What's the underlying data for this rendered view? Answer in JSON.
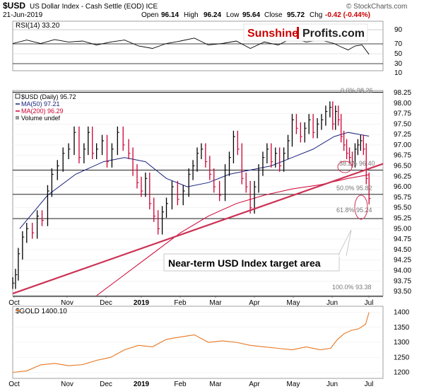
{
  "header": {
    "symbol": "$USD",
    "name": "US Dollar Index - Cash Settle (EOD) ICE",
    "date": "21-Jun-2019",
    "open_label": "Open",
    "open": "96.14",
    "high_label": "High",
    "high": "96.24",
    "low_label": "Low",
    "low": "95.64",
    "close_label": "Close",
    "close": "95.72",
    "chg_label": "Chg",
    "chg": "-0.42 (-0.44%)",
    "source": "© StockCharts.com"
  },
  "logo": {
    "part1": "Sunshine",
    "part2": "Profits.com"
  },
  "rsi": {
    "label": "RSI(14) 33.20",
    "ticks": [
      "90",
      "70",
      "50",
      "30",
      "10"
    ]
  },
  "price_legend": {
    "symbol": "$USD (Daily) 95.72",
    "ma50": "MA(50) 97.21",
    "ma200": "MA(200) 96.29",
    "volume": "Volume undef"
  },
  "fib_labels": {
    "f0": "0.0% 98.26",
    "f382": "38.2% 96.40",
    "f50": "50.0% 95.82",
    "f618": "61.8% 95.24",
    "f100": "100.0% 93.38"
  },
  "annotation": "Near-term USD Index target area",
  "gold": {
    "label": "$GOLD 1400.10",
    "ticks": [
      "1400",
      "1350",
      "1300",
      "1250",
      "1200"
    ]
  },
  "colors": {
    "price": "#000000",
    "up": "#000000",
    "down": "#cc0033",
    "ma50": "#1a237e",
    "ma200": "#cc0033",
    "trendline": "#cc3355",
    "gold_line": "#e87722",
    "logo_red": "#cc0000"
  },
  "chart_data": {
    "type": "line",
    "price": {
      "title": "$USD (Daily) 95.72",
      "x_labels": [
        "Oct",
        "Nov",
        "Dec",
        "2019",
        "Feb",
        "Mar",
        "Apr",
        "May",
        "Jun",
        "Jul"
      ],
      "y_ticks": [
        "98.25",
        "98.00",
        "97.75",
        "97.50",
        "97.25",
        "97.00",
        "96.75",
        "96.50",
        "96.25",
        "96.00",
        "95.75",
        "95.50",
        "95.25",
        "95.00",
        "94.75",
        "94.50",
        "94.25",
        "94.00",
        "93.75",
        "93.50"
      ],
      "ylim": [
        93.4,
        98.3
      ],
      "close_series": [
        {
          "x": 0,
          "y": 93.7
        },
        {
          "x": 4,
          "y": 93.9
        },
        {
          "x": 8,
          "y": 94.4
        },
        {
          "x": 14,
          "y": 94.8
        },
        {
          "x": 20,
          "y": 95.0
        },
        {
          "x": 28,
          "y": 94.9
        },
        {
          "x": 35,
          "y": 95.3
        },
        {
          "x": 42,
          "y": 95.2
        },
        {
          "x": 50,
          "y": 95.9
        },
        {
          "x": 56,
          "y": 96.3
        },
        {
          "x": 64,
          "y": 96.5
        },
        {
          "x": 72,
          "y": 96.8
        },
        {
          "x": 80,
          "y": 96.9
        },
        {
          "x": 88,
          "y": 97.3
        },
        {
          "x": 95,
          "y": 96.7
        },
        {
          "x": 102,
          "y": 96.9
        },
        {
          "x": 108,
          "y": 97.3
        },
        {
          "x": 114,
          "y": 96.8
        },
        {
          "x": 120,
          "y": 96.9
        },
        {
          "x": 128,
          "y": 97.1
        },
        {
          "x": 135,
          "y": 96.6
        },
        {
          "x": 142,
          "y": 96.9
        },
        {
          "x": 150,
          "y": 97.3
        },
        {
          "x": 158,
          "y": 97.0
        },
        {
          "x": 166,
          "y": 96.8
        },
        {
          "x": 172,
          "y": 96.4
        },
        {
          "x": 178,
          "y": 96.1
        },
        {
          "x": 184,
          "y": 95.9
        },
        {
          "x": 190,
          "y": 96.2
        },
        {
          "x": 196,
          "y": 95.6
        },
        {
          "x": 202,
          "y": 95.3
        },
        {
          "x": 208,
          "y": 95.0
        },
        {
          "x": 214,
          "y": 95.4
        },
        {
          "x": 220,
          "y": 95.6
        },
        {
          "x": 228,
          "y": 96.0
        },
        {
          "x": 236,
          "y": 95.7
        },
        {
          "x": 244,
          "y": 95.9
        },
        {
          "x": 252,
          "y": 96.3
        },
        {
          "x": 258,
          "y": 96.5
        },
        {
          "x": 264,
          "y": 96.8
        },
        {
          "x": 270,
          "y": 96.9
        },
        {
          "x": 276,
          "y": 96.6
        },
        {
          "x": 282,
          "y": 96.3
        },
        {
          "x": 288,
          "y": 96.0
        },
        {
          "x": 296,
          "y": 95.8
        },
        {
          "x": 304,
          "y": 96.4
        },
        {
          "x": 310,
          "y": 96.7
        },
        {
          "x": 316,
          "y": 97.2
        },
        {
          "x": 322,
          "y": 96.9
        },
        {
          "x": 328,
          "y": 96.2
        },
        {
          "x": 334,
          "y": 96.0
        },
        {
          "x": 340,
          "y": 95.5
        },
        {
          "x": 346,
          "y": 96.0
        },
        {
          "x": 352,
          "y": 96.4
        },
        {
          "x": 358,
          "y": 96.7
        },
        {
          "x": 364,
          "y": 96.9
        },
        {
          "x": 370,
          "y": 96.6
        },
        {
          "x": 376,
          "y": 96.8
        },
        {
          "x": 382,
          "y": 96.5
        },
        {
          "x": 388,
          "y": 96.8
        },
        {
          "x": 394,
          "y": 97.1
        },
        {
          "x": 400,
          "y": 97.6
        },
        {
          "x": 406,
          "y": 97.4
        },
        {
          "x": 412,
          "y": 97.2
        },
        {
          "x": 418,
          "y": 97.4
        },
        {
          "x": 424,
          "y": 97.6
        },
        {
          "x": 430,
          "y": 97.3
        },
        {
          "x": 436,
          "y": 97.5
        },
        {
          "x": 442,
          "y": 97.6
        },
        {
          "x": 448,
          "y": 97.8
        },
        {
          "x": 454,
          "y": 97.9
        },
        {
          "x": 458,
          "y": 97.5
        },
        {
          "x": 462,
          "y": 97.8
        },
        {
          "x": 466,
          "y": 97.6
        },
        {
          "x": 470,
          "y": 97.2
        },
        {
          "x": 474,
          "y": 97.0
        },
        {
          "x": 478,
          "y": 96.8
        },
        {
          "x": 482,
          "y": 96.7
        },
        {
          "x": 486,
          "y": 96.6
        },
        {
          "x": 490,
          "y": 96.9
        },
        {
          "x": 494,
          "y": 97.0
        },
        {
          "x": 498,
          "y": 97.1
        },
        {
          "x": 502,
          "y": 96.9
        },
        {
          "x": 506,
          "y": 96.2
        },
        {
          "x": 510,
          "y": 95.72
        }
      ],
      "ma50": [
        {
          "x": 10,
          "y": 95.0
        },
        {
          "x": 50,
          "y": 95.8
        },
        {
          "x": 90,
          "y": 96.3
        },
        {
          "x": 130,
          "y": 96.6
        },
        {
          "x": 160,
          "y": 96.7
        },
        {
          "x": 190,
          "y": 96.6
        },
        {
          "x": 220,
          "y": 96.2
        },
        {
          "x": 250,
          "y": 96.0
        },
        {
          "x": 280,
          "y": 96.1
        },
        {
          "x": 310,
          "y": 96.3
        },
        {
          "x": 340,
          "y": 96.4
        },
        {
          "x": 370,
          "y": 96.5
        },
        {
          "x": 400,
          "y": 96.7
        },
        {
          "x": 430,
          "y": 96.9
        },
        {
          "x": 460,
          "y": 97.2
        },
        {
          "x": 480,
          "y": 97.3
        },
        {
          "x": 510,
          "y": 97.21
        }
      ],
      "ma200": [
        {
          "x": 120,
          "y": 93.4
        },
        {
          "x": 160,
          "y": 93.9
        },
        {
          "x": 200,
          "y": 94.4
        },
        {
          "x": 240,
          "y": 94.9
        },
        {
          "x": 280,
          "y": 95.3
        },
        {
          "x": 320,
          "y": 95.6
        },
        {
          "x": 360,
          "y": 95.8
        },
        {
          "x": 400,
          "y": 95.95
        },
        {
          "x": 440,
          "y": 96.05
        },
        {
          "x": 480,
          "y": 96.2
        },
        {
          "x": 510,
          "y": 96.29
        }
      ],
      "fib_levels": [
        98.26,
        96.4,
        95.82,
        95.24,
        93.38
      ],
      "trendline": [
        {
          "x": 0,
          "y": 93.45
        },
        {
          "x": 530,
          "y": 96.55
        }
      ]
    },
    "rsi": {
      "title": "RSI(14) 33.20",
      "ylim": [
        0,
        100
      ],
      "values": [
        {
          "x": 0,
          "y": 55
        },
        {
          "x": 20,
          "y": 62
        },
        {
          "x": 40,
          "y": 55
        },
        {
          "x": 60,
          "y": 63
        },
        {
          "x": 80,
          "y": 58
        },
        {
          "x": 100,
          "y": 60
        },
        {
          "x": 120,
          "y": 52
        },
        {
          "x": 140,
          "y": 58
        },
        {
          "x": 160,
          "y": 62
        },
        {
          "x": 180,
          "y": 50
        },
        {
          "x": 200,
          "y": 45
        },
        {
          "x": 220,
          "y": 55
        },
        {
          "x": 240,
          "y": 60
        },
        {
          "x": 260,
          "y": 66
        },
        {
          "x": 280,
          "y": 52
        },
        {
          "x": 300,
          "y": 55
        },
        {
          "x": 320,
          "y": 60
        },
        {
          "x": 340,
          "y": 45
        },
        {
          "x": 360,
          "y": 58
        },
        {
          "x": 380,
          "y": 52
        },
        {
          "x": 400,
          "y": 66
        },
        {
          "x": 420,
          "y": 58
        },
        {
          "x": 440,
          "y": 62
        },
        {
          "x": 460,
          "y": 55
        },
        {
          "x": 470,
          "y": 48
        },
        {
          "x": 480,
          "y": 42
        },
        {
          "x": 490,
          "y": 50
        },
        {
          "x": 500,
          "y": 52
        },
        {
          "x": 510,
          "y": 33.2
        }
      ]
    },
    "gold": {
      "title": "$GOLD 1400.10",
      "ylim": [
        1180,
        1420
      ],
      "x_labels": [
        "Oct",
        "Nov",
        "Dec",
        "2019",
        "Feb",
        "Mar",
        "Apr",
        "May",
        "Jun",
        "Jul"
      ],
      "values": [
        {
          "x": 0,
          "y": 1200
        },
        {
          "x": 20,
          "y": 1205
        },
        {
          "x": 40,
          "y": 1225
        },
        {
          "x": 60,
          "y": 1230
        },
        {
          "x": 80,
          "y": 1222
        },
        {
          "x": 100,
          "y": 1226
        },
        {
          "x": 120,
          "y": 1240
        },
        {
          "x": 140,
          "y": 1250
        },
        {
          "x": 160,
          "y": 1275
        },
        {
          "x": 180,
          "y": 1290
        },
        {
          "x": 200,
          "y": 1285
        },
        {
          "x": 220,
          "y": 1310
        },
        {
          "x": 240,
          "y": 1318
        },
        {
          "x": 260,
          "y": 1325
        },
        {
          "x": 280,
          "y": 1300
        },
        {
          "x": 300,
          "y": 1305
        },
        {
          "x": 320,
          "y": 1300
        },
        {
          "x": 340,
          "y": 1290
        },
        {
          "x": 360,
          "y": 1285
        },
        {
          "x": 380,
          "y": 1280
        },
        {
          "x": 400,
          "y": 1275
        },
        {
          "x": 420,
          "y": 1285
        },
        {
          "x": 440,
          "y": 1275
        },
        {
          "x": 455,
          "y": 1280
        },
        {
          "x": 465,
          "y": 1310
        },
        {
          "x": 475,
          "y": 1330
        },
        {
          "x": 485,
          "y": 1340
        },
        {
          "x": 495,
          "y": 1345
        },
        {
          "x": 505,
          "y": 1360
        },
        {
          "x": 510,
          "y": 1400.1
        }
      ]
    }
  }
}
